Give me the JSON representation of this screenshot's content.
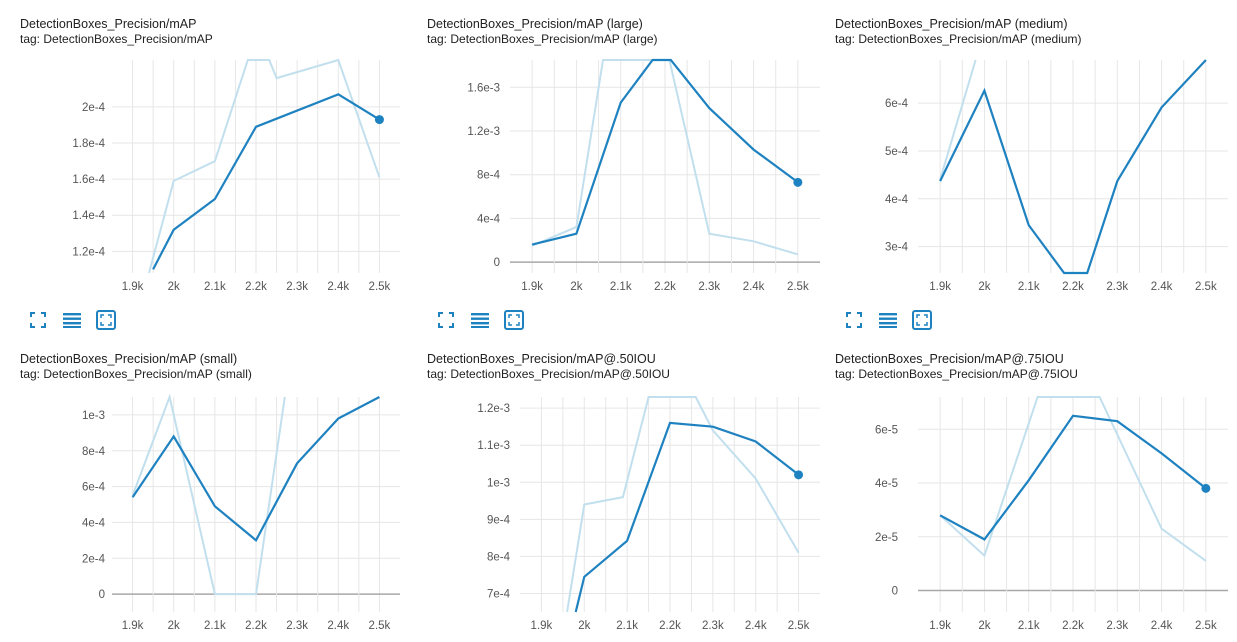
{
  "colors": {
    "smoothed": "#1f82c0",
    "raw": "#c2dfee",
    "grid": "#e6e6e6",
    "zero": "#a8a8a8"
  },
  "toolbar_icons": [
    "fullscreen-icon",
    "toggle-log-scale-icon",
    "fit-domain-icon"
  ],
  "chart_data": [
    {
      "type": "line",
      "title": "DetectionBoxes_Precision/mAP",
      "tag": "tag: DetectionBoxes_Precision/mAP",
      "x_ticks": [
        "1.9k",
        "2k",
        "2.1k",
        "2.2k",
        "2.3k",
        "2.4k",
        "2.5k"
      ],
      "x_tick_values": [
        1900,
        2000,
        2100,
        2200,
        2300,
        2400,
        2500
      ],
      "y_ticks": [
        "1.2e-4",
        "1.4e-4",
        "1.6e-4",
        "1.8e-4",
        "2e-4"
      ],
      "y_tick_values": [
        0.00012,
        0.00014,
        0.00016,
        0.00018,
        0.0002
      ],
      "xlim": [
        1850,
        2550
      ],
      "ylim": [
        0.000108,
        0.000226
      ],
      "series": [
        {
          "role": "raw",
          "x": [
            1940,
            2000,
            2100,
            2180,
            2232,
            2250,
            2400,
            2500
          ],
          "y": [
            0.000108,
            0.000159,
            0.00017,
            0.000226,
            0.000226,
            0.000216,
            0.000226,
            0.000161
          ]
        },
        {
          "role": "smoothed",
          "x": [
            1950,
            2000,
            2100,
            2200,
            2400,
            2500
          ],
          "y": [
            0.00011,
            0.000132,
            0.000149,
            0.000189,
            0.000207,
            0.000193
          ]
        }
      ]
    },
    {
      "type": "line",
      "title": "DetectionBoxes_Precision/mAP (large)",
      "tag": "tag: DetectionBoxes_Precision/mAP (large)",
      "x_ticks": [
        "1.9k",
        "2k",
        "2.1k",
        "2.2k",
        "2.3k",
        "2.4k",
        "2.5k"
      ],
      "x_tick_values": [
        1900,
        2000,
        2100,
        2200,
        2300,
        2400,
        2500
      ],
      "y_ticks": [
        "0",
        "4e-4",
        "8e-4",
        "1.2e-3",
        "1.6e-3"
      ],
      "y_tick_values": [
        0,
        0.0004,
        0.0008,
        0.0012,
        0.0016
      ],
      "xlim": [
        1850,
        2550
      ],
      "ylim": [
        -0.0001,
        0.00185
      ],
      "zero_line": true,
      "series": [
        {
          "role": "raw",
          "x": [
            1900,
            2000,
            2060,
            2180,
            2210,
            2300,
            2400,
            2500
          ],
          "y": [
            0.00015,
            0.00032,
            0.00185,
            0.00185,
            0.00185,
            0.00026,
            0.00019,
            7e-05
          ]
        },
        {
          "role": "smoothed",
          "x": [
            1900,
            2000,
            2100,
            2172,
            2213,
            2300,
            2400,
            2500
          ],
          "y": [
            0.00016,
            0.00026,
            0.00146,
            0.00185,
            0.00185,
            0.00141,
            0.00103,
            0.00073
          ]
        }
      ]
    },
    {
      "type": "line",
      "title": "DetectionBoxes_Precision/mAP (medium)",
      "tag": "tag: DetectionBoxes_Precision/mAP (medium)",
      "x_ticks": [
        "1.9k",
        "2k",
        "2.1k",
        "2.2k",
        "2.3k",
        "2.4k",
        "2.5k"
      ],
      "x_tick_values": [
        1900,
        2000,
        2100,
        2200,
        2300,
        2400,
        2500
      ],
      "y_ticks": [
        "3e-4",
        "4e-4",
        "5e-4",
        "6e-4"
      ],
      "y_tick_values": [
        0.0003,
        0.0004,
        0.0005,
        0.0006
      ],
      "xlim": [
        1850,
        2550
      ],
      "ylim": [
        0.000245,
        0.00069
      ],
      "series": [
        {
          "role": "raw",
          "x": [
            1900,
            1980
          ],
          "y": [
            0.00044,
            0.00069
          ]
        },
        {
          "role": "smoothed",
          "x": [
            1900,
            2000,
            2100,
            2180,
            2232,
            2300,
            2400,
            2500
          ],
          "y": [
            0.000437,
            0.000626,
            0.000345,
            0.000245,
            0.000245,
            0.000437,
            0.000591,
            0.00069
          ]
        }
      ]
    },
    {
      "type": "line",
      "title": "DetectionBoxes_Precision/mAP (small)",
      "tag": "tag: DetectionBoxes_Precision/mAP (small)",
      "x_ticks": [
        "1.9k",
        "2k",
        "2.1k",
        "2.2k",
        "2.3k",
        "2.4k",
        "2.5k"
      ],
      "x_tick_values": [
        1900,
        2000,
        2100,
        2200,
        2300,
        2400,
        2500
      ],
      "y_ticks": [
        "0",
        "2e-4",
        "4e-4",
        "6e-4",
        "8e-4",
        "1e-3"
      ],
      "y_tick_values": [
        0,
        0.0002,
        0.0004,
        0.0006,
        0.0008,
        0.001
      ],
      "xlim": [
        1850,
        2550
      ],
      "ylim": [
        -0.0001,
        0.0011
      ],
      "zero_line": true,
      "series": [
        {
          "role": "raw",
          "x": [
            1900,
            1990,
            2100,
            2200,
            2270
          ],
          "y": [
            0.00055,
            0.0011,
            0.0,
            0.0,
            0.0011
          ]
        },
        {
          "role": "smoothed",
          "x": [
            1900,
            2000,
            2100,
            2200,
            2300,
            2400,
            2500
          ],
          "y": [
            0.00054,
            0.00088,
            0.00049,
            0.0003,
            0.00073,
            0.00098,
            0.0011
          ]
        }
      ]
    },
    {
      "type": "line",
      "title": "DetectionBoxes_Precision/mAP@.50IOU",
      "tag": "tag: DetectionBoxes_Precision/mAP@.50IOU",
      "x_ticks": [
        "1.9k",
        "2k",
        "2.1k",
        "2.2k",
        "2.3k",
        "2.4k",
        "2.5k"
      ],
      "x_tick_values": [
        1900,
        2000,
        2100,
        2200,
        2300,
        2400,
        2500
      ],
      "y_ticks": [
        "7e-4",
        "8e-4",
        "9e-4",
        "1e-3",
        "1.1e-3",
        "1.2e-3"
      ],
      "y_tick_values": [
        0.0007,
        0.0008,
        0.0009,
        0.001,
        0.0011,
        0.0012
      ],
      "xlim": [
        1850,
        2550
      ],
      "ylim": [
        0.00065,
        0.00123
      ],
      "series": [
        {
          "role": "raw",
          "x": [
            1960,
            2000,
            2090,
            2150,
            2260,
            2300,
            2400,
            2500
          ],
          "y": [
            0.00065,
            0.00094,
            0.00096,
            0.00123,
            0.00123,
            0.00114,
            0.00101,
            0.00081
          ]
        },
        {
          "role": "smoothed",
          "x": [
            1980,
            2000,
            2100,
            2200,
            2300,
            2400,
            2500
          ],
          "y": [
            0.00065,
            0.000745,
            0.000842,
            0.00116,
            0.00115,
            0.00111,
            0.00102
          ]
        }
      ]
    },
    {
      "type": "line",
      "title": "DetectionBoxes_Precision/mAP@.75IOU",
      "tag": "tag: DetectionBoxes_Precision/mAP@.75IOU",
      "x_ticks": [
        "1.9k",
        "2k",
        "2.1k",
        "2.2k",
        "2.3k",
        "2.4k",
        "2.5k"
      ],
      "x_tick_values": [
        1900,
        2000,
        2100,
        2200,
        2300,
        2400,
        2500
      ],
      "y_ticks": [
        "0",
        "2e-5",
        "4e-5",
        "6e-5"
      ],
      "y_tick_values": [
        0,
        2e-05,
        4e-05,
        6e-05
      ],
      "xlim": [
        1850,
        2550
      ],
      "ylim": [
        -8e-06,
        7.2e-05
      ],
      "zero_line": true,
      "series": [
        {
          "role": "raw",
          "x": [
            1900,
            2000,
            2120,
            2260,
            2300,
            2400,
            2500
          ],
          "y": [
            2.8e-05,
            1.3e-05,
            7.2e-05,
            7.2e-05,
            5.8e-05,
            2.3e-05,
            1.1e-05
          ]
        },
        {
          "role": "smoothed",
          "x": [
            1900,
            2000,
            2100,
            2200,
            2300,
            2400,
            2500
          ],
          "y": [
            2.8e-05,
            1.9e-05,
            4.1e-05,
            6.5e-05,
            6.3e-05,
            5.1e-05,
            3.8e-05
          ]
        }
      ]
    }
  ]
}
